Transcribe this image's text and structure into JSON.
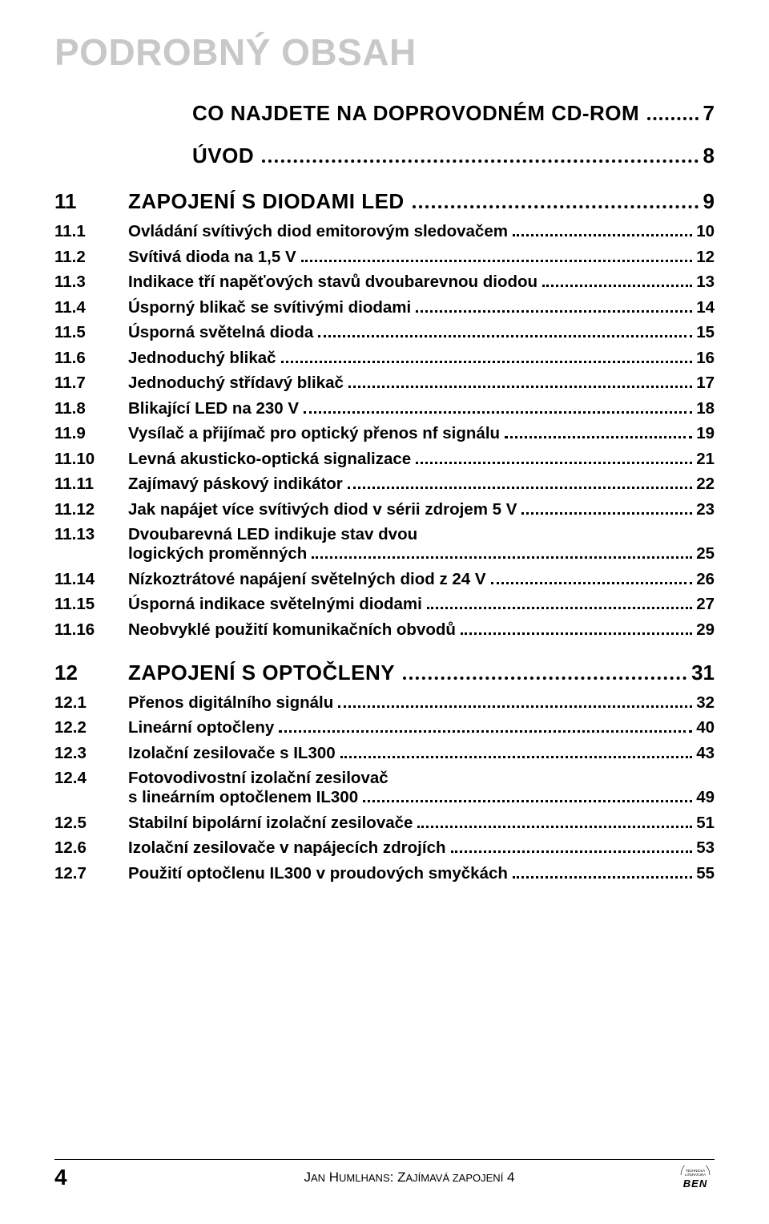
{
  "title": "PODROBNÝ OBSAH",
  "sections": [
    {
      "num": "",
      "label": "CO NAJDETE NA DOPROVODNÉM CD-ROM",
      "page": "7",
      "first": true,
      "entries": []
    },
    {
      "num": "",
      "label": "ÚVOD",
      "page": "8",
      "indent": true,
      "entries": []
    },
    {
      "num": "11",
      "label": "ZAPOJENÍ S DIODAMI LED",
      "page": "9",
      "entries": [
        {
          "num": "11.1",
          "label": "Ovládání svítivých diod emitorovým sledovačem",
          "page": "10"
        },
        {
          "num": "11.2",
          "label": "Svítivá dioda na 1,5 V",
          "page": "12"
        },
        {
          "num": "11.3",
          "label": "Indikace tří napěťových stavů dvoubarevnou diodou",
          "page": "13"
        },
        {
          "num": "11.4",
          "label": "Úsporný blikač se svítivými diodami",
          "page": "14"
        },
        {
          "num": "11.5",
          "label": "Úsporná světelná dioda",
          "page": "15"
        },
        {
          "num": "11.6",
          "label": "Jednoduchý blikač",
          "page": "16"
        },
        {
          "num": "11.7",
          "label": "Jednoduchý střídavý blikač",
          "page": "17"
        },
        {
          "num": "11.8",
          "label": "Blikající LED na 230 V",
          "page": "18"
        },
        {
          "num": "11.9",
          "label": "Vysílač a přijímač pro optický přenos nf signálu",
          "page": "19"
        },
        {
          "num": "11.10",
          "label": "Levná akusticko-optická signalizace",
          "page": "21"
        },
        {
          "num": "11.11",
          "label": "Zajímavý páskový indikátor",
          "page": "22"
        },
        {
          "num": "11.12",
          "label": "Jak napájet více svítivých diod v sérii zdrojem 5 V",
          "page": "23"
        },
        {
          "num": "11.13",
          "label": "Dvoubarevná LED indikuje stav dvou",
          "extra": "logických proměnných",
          "page": "25"
        },
        {
          "num": "11.14",
          "label": "Nízkoztrátové napájení světelných diod z 24 V",
          "page": "26"
        },
        {
          "num": "11.15",
          "label": "Úsporná indikace světelnými diodami",
          "page": "27"
        },
        {
          "num": "11.16",
          "label": "Neobvyklé použití komunikačních obvodů",
          "page": "29"
        }
      ]
    },
    {
      "num": "12",
      "label": "ZAPOJENÍ S OPTOČLENY",
      "page": "31",
      "entries": [
        {
          "num": "12.1",
          "label": "Přenos digitálního signálu",
          "page": "32"
        },
        {
          "num": "12.2",
          "label": "Lineární optočleny",
          "page": "40"
        },
        {
          "num": "12.3",
          "label": "Izolační zesilovače s IL300",
          "page": "43"
        },
        {
          "num": "12.4",
          "label": "Fotovodivostní izolační zesilovač",
          "extra": "s lineárním optočlenem IL300",
          "page": "49"
        },
        {
          "num": "12.5",
          "label": "Stabilní bipolární izolační zesilovače",
          "page": "51"
        },
        {
          "num": "12.6",
          "label": "Izolační zesilovače v napájecích zdrojích",
          "page": "53"
        },
        {
          "num": "12.7",
          "label": "Použití optočlenu IL300 v proudových smyčkách",
          "page": "55"
        }
      ]
    }
  ],
  "footer": {
    "pagenum": "4",
    "author": "Jan Humlhans",
    "booktitle": "Zajímavá zapojení 4",
    "logo_top": "TECHNICKÁ LITERATURA",
    "logo_main": "BEN"
  }
}
